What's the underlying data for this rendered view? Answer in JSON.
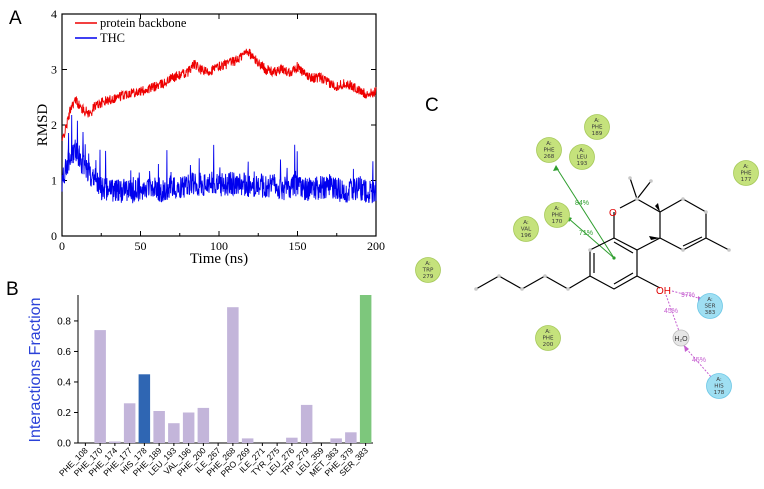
{
  "panels": {
    "a": "A",
    "b": "B",
    "c": "C"
  },
  "colors": {
    "protein": "#ee0000",
    "thc": "#0000ee",
    "bar_lavender": "#c3b5da",
    "bar_blue": "#2f66b3",
    "bar_green": "#7dc77c",
    "hydrophobic": "#c5e27c",
    "polar": "#9fdff2",
    "pi_line": "#2e9e2e",
    "hbond_line": "#c55ed0"
  },
  "chart_data": [
    {
      "id": "rmsd",
      "type": "line",
      "title": "",
      "xlabel": "Time (ns)",
      "ylabel": "RMSD",
      "xlim": [
        0,
        200
      ],
      "ylim": [
        0,
        4
      ],
      "xticks": [
        "0",
        "50",
        "100",
        "150",
        "200"
      ],
      "yticks": [
        "0",
        "1",
        "2",
        "3",
        "4"
      ],
      "legend_position": "top-left",
      "series": [
        {
          "name": "protein backbone",
          "color": "#ee0000",
          "x": [
            0,
            3,
            6,
            9,
            12,
            15,
            18,
            21,
            25,
            30,
            35,
            40,
            45,
            50,
            55,
            60,
            65,
            70,
            75,
            80,
            84,
            88,
            92,
            96,
            100,
            105,
            110,
            115,
            118,
            122,
            126,
            130,
            135,
            140,
            145,
            150,
            155,
            160,
            165,
            170,
            175,
            180,
            185,
            190,
            195,
            200
          ],
          "y": [
            1.7,
            2.0,
            2.35,
            2.45,
            2.3,
            2.25,
            2.2,
            2.35,
            2.4,
            2.45,
            2.5,
            2.55,
            2.6,
            2.6,
            2.65,
            2.7,
            2.75,
            2.85,
            2.9,
            2.95,
            3.1,
            3.0,
            2.95,
            3.0,
            3.05,
            3.1,
            3.15,
            3.25,
            3.35,
            3.2,
            3.1,
            3.0,
            2.95,
            3.0,
            2.95,
            3.05,
            2.9,
            2.85,
            2.85,
            2.75,
            2.7,
            2.75,
            2.7,
            2.6,
            2.55,
            2.6
          ],
          "noise": 0.09
        },
        {
          "name": "THC",
          "color": "#0000ee",
          "x": [
            0,
            3,
            6,
            9,
            12,
            15,
            18,
            21,
            25,
            30,
            35,
            40,
            45,
            50,
            55,
            60,
            65,
            70,
            75,
            80,
            85,
            90,
            95,
            100,
            105,
            110,
            115,
            120,
            125,
            130,
            135,
            140,
            145,
            150,
            155,
            160,
            165,
            170,
            175,
            180,
            185,
            190,
            195,
            200
          ],
          "y": [
            1.0,
            1.3,
            1.5,
            1.55,
            1.35,
            1.25,
            1.1,
            1.0,
            0.85,
            0.82,
            0.8,
            0.82,
            0.8,
            0.85,
            0.9,
            0.85,
            0.82,
            0.9,
            0.88,
            0.92,
            0.95,
            0.9,
            0.95,
            0.92,
            0.9,
            0.95,
            0.95,
            0.9,
            0.92,
            0.88,
            0.9,
            0.85,
            0.88,
            0.9,
            0.85,
            0.85,
            0.88,
            0.9,
            0.85,
            0.8,
            0.82,
            0.85,
            0.8,
            0.82
          ],
          "noise": 0.22
        }
      ]
    },
    {
      "id": "interactions",
      "type": "bar",
      "title": "",
      "xlabel": "",
      "ylabel": "Interactions Fraction",
      "ylim": [
        0,
        0.97
      ],
      "yticks": [
        "0.0",
        "0.2",
        "0.4",
        "0.6",
        "0.8"
      ],
      "categories": [
        "PHE_108",
        "PHE_170",
        "PHE_174",
        "PHE_177",
        "HIS_178",
        "PHE_189",
        "LEU_193",
        "VAL_196",
        "PHE_200",
        "ILE_267",
        "PHE_268",
        "PRO_269",
        "ILE_271",
        "TYR_275",
        "LEU_276",
        "TRP_279",
        "LEU_359",
        "MET_363",
        "PHE_379",
        "SER_383"
      ],
      "values": [
        0.0,
        0.74,
        0.01,
        0.26,
        0.45,
        0.21,
        0.13,
        0.2,
        0.23,
        0.0,
        0.89,
        0.03,
        0.0,
        0.0,
        0.035,
        0.25,
        0.0,
        0.03,
        0.07,
        0.97
      ],
      "bar_colors": [
        "#c3b5da",
        "#c3b5da",
        "#c3b5da",
        "#c3b5da",
        "#2f66b3",
        "#c3b5da",
        "#c3b5da",
        "#c3b5da",
        "#c3b5da",
        "#c3b5da",
        "#c3b5da",
        "#c3b5da",
        "#c3b5da",
        "#c3b5da",
        "#c3b5da",
        "#c3b5da",
        "#c3b5da",
        "#c3b5da",
        "#c3b5da",
        "#7dc77c"
      ]
    }
  ],
  "diagram": {
    "residues": [
      {
        "chain": "A:",
        "name": "PHE",
        "num": "189",
        "type": "hydrophobic"
      },
      {
        "chain": "A:",
        "name": "PHE",
        "num": "268",
        "type": "hydrophobic"
      },
      {
        "chain": "A:",
        "name": "LEU",
        "num": "193",
        "type": "hydrophobic"
      },
      {
        "chain": "A:",
        "name": "PHE",
        "num": "177",
        "type": "hydrophobic"
      },
      {
        "chain": "A:",
        "name": "VAL",
        "num": "196",
        "type": "hydrophobic"
      },
      {
        "chain": "A:",
        "name": "PHE",
        "num": "170",
        "type": "hydrophobic"
      },
      {
        "chain": "A:",
        "name": "TRP",
        "num": "279",
        "type": "hydrophobic"
      },
      {
        "chain": "A:",
        "name": "PHE",
        "num": "200",
        "type": "hydrophobic"
      },
      {
        "chain": "A:",
        "name": "SER",
        "num": "383",
        "type": "polar"
      },
      {
        "chain": "A:",
        "name": "HIS",
        "num": "178",
        "type": "polar"
      }
    ],
    "water_label": "H₂O",
    "atom_o": "O",
    "atom_oh": "OH",
    "pct_84": "84%",
    "pct_71": "71%",
    "pct_97": "97%",
    "pct_45a": "45%",
    "pct_45b": "45%"
  }
}
